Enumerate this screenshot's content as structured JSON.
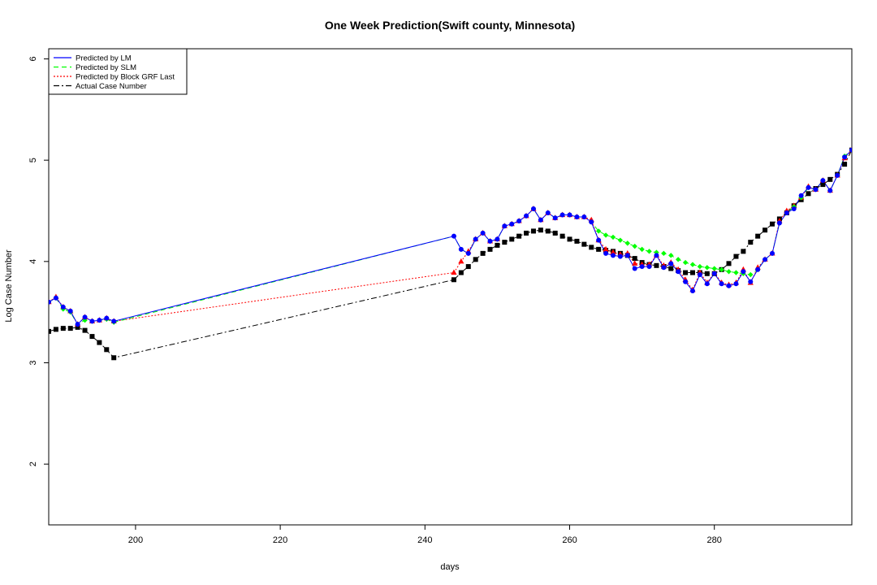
{
  "chart_data": {
    "type": "line",
    "title": "One Week Prediction(Swift county, Minnesota)",
    "xlabel": "days",
    "ylabel": "Log Case Number",
    "xlim": [
      188,
      299
    ],
    "ylim": [
      1.4,
      6.1
    ],
    "x_ticks": [
      200,
      220,
      240,
      260,
      280
    ],
    "y_ticks": [
      2,
      3,
      4,
      5,
      6
    ],
    "grid": false,
    "legend_position": "top-left",
    "legend": [
      {
        "label": "Predicted by LM",
        "color": "#0000ff",
        "style": "solid"
      },
      {
        "label": "Predicted by SLM",
        "color": "#00ff00",
        "style": "dashed"
      },
      {
        "label": "Predicted by Block GRF Last",
        "color": "#ff0000",
        "style": "dotted"
      },
      {
        "label": "Actual Case Number",
        "color": "#000000",
        "style": "dashdot"
      }
    ],
    "x": [
      188,
      189,
      190,
      191,
      192,
      193,
      194,
      195,
      196,
      197,
      244,
      245,
      246,
      247,
      248,
      249,
      250,
      251,
      252,
      253,
      254,
      255,
      256,
      257,
      258,
      259,
      260,
      261,
      262,
      263,
      264,
      265,
      266,
      267,
      268,
      269,
      270,
      271,
      272,
      273,
      274,
      275,
      276,
      277,
      278,
      279,
      280,
      281,
      282,
      283,
      284,
      285,
      286,
      287,
      288,
      289,
      290,
      291,
      292,
      293,
      294,
      295,
      296,
      297,
      298,
      299
    ],
    "series": [
      {
        "name": "Predicted by LM",
        "color": "#0000ff",
        "marker": "circle",
        "values": [
          3.6,
          3.64,
          3.55,
          3.51,
          3.38,
          3.45,
          3.41,
          3.42,
          3.44,
          3.41,
          4.25,
          4.12,
          4.08,
          4.22,
          4.28,
          4.2,
          4.22,
          4.35,
          4.37,
          4.4,
          4.45,
          4.52,
          4.41,
          4.48,
          4.43,
          4.46,
          4.46,
          4.44,
          4.44,
          4.39,
          4.21,
          4.08,
          4.06,
          4.05,
          4.06,
          3.93,
          3.95,
          3.95,
          4.06,
          3.94,
          3.98,
          3.9,
          3.8,
          3.71,
          3.87,
          3.78,
          3.88,
          3.78,
          3.76,
          3.78,
          3.9,
          3.8,
          3.92,
          4.02,
          4.08,
          4.38,
          4.48,
          4.52,
          4.65,
          4.73,
          4.71,
          4.8,
          4.7,
          4.85,
          5.03,
          5.1
        ]
      },
      {
        "name": "Predicted by SLM",
        "color": "#00ff00",
        "marker": "diamond",
        "values": [
          3.6,
          3.64,
          3.53,
          3.5,
          3.38,
          3.42,
          3.41,
          3.42,
          3.43,
          3.4,
          4.25,
          4.12,
          4.08,
          4.22,
          4.28,
          4.2,
          4.22,
          4.35,
          4.37,
          4.4,
          4.45,
          4.52,
          4.41,
          4.48,
          4.43,
          4.46,
          4.46,
          4.44,
          4.44,
          4.39,
          4.3,
          4.26,
          4.24,
          4.21,
          4.18,
          4.15,
          4.12,
          4.1,
          4.09,
          4.08,
          4.06,
          4.02,
          3.99,
          3.97,
          3.95,
          3.94,
          3.93,
          3.92,
          3.9,
          3.89,
          3.88,
          3.87,
          3.92,
          4.02,
          4.08,
          4.38,
          4.48,
          4.54,
          4.63,
          4.73,
          4.71,
          4.8,
          4.7,
          4.85,
          5.04,
          5.1
        ]
      },
      {
        "name": "Predicted by Block GRF Last",
        "color": "#ff0000",
        "marker": "triangle",
        "values": [
          3.6,
          3.65,
          3.55,
          3.51,
          3.38,
          3.45,
          3.41,
          3.42,
          3.44,
          3.41,
          3.89,
          4.0,
          4.1,
          4.22,
          4.28,
          4.2,
          4.22,
          4.35,
          4.37,
          4.4,
          4.45,
          4.52,
          4.41,
          4.48,
          4.43,
          4.46,
          4.46,
          4.44,
          4.44,
          4.41,
          4.21,
          4.12,
          4.09,
          4.07,
          4.08,
          3.98,
          3.97,
          3.97,
          4.06,
          3.96,
          3.99,
          3.92,
          3.82,
          3.72,
          3.89,
          3.79,
          3.89,
          3.79,
          3.77,
          3.79,
          3.92,
          3.79,
          3.94,
          4.02,
          4.08,
          4.4,
          4.5,
          4.55,
          4.63,
          4.74,
          4.71,
          4.8,
          4.7,
          4.85,
          5.02,
          5.1
        ]
      },
      {
        "name": "Actual Case Number",
        "color": "#000000",
        "marker": "square",
        "values": [
          3.31,
          3.33,
          3.34,
          3.34,
          3.35,
          3.32,
          3.26,
          3.2,
          3.13,
          3.05,
          3.82,
          3.89,
          3.95,
          4.02,
          4.08,
          4.12,
          4.16,
          4.19,
          4.22,
          4.25,
          4.28,
          4.3,
          4.31,
          4.3,
          4.28,
          4.25,
          4.22,
          4.2,
          4.17,
          4.14,
          4.12,
          4.11,
          4.1,
          4.08,
          4.06,
          4.03,
          3.99,
          3.97,
          3.96,
          3.95,
          3.93,
          3.91,
          3.89,
          3.89,
          3.89,
          3.88,
          3.88,
          3.92,
          3.98,
          4.05,
          4.1,
          4.19,
          4.25,
          4.31,
          4.37,
          4.42,
          4.48,
          4.55,
          4.61,
          4.67,
          4.72,
          4.76,
          4.81,
          4.86,
          4.96,
          5.1
        ]
      }
    ]
  }
}
